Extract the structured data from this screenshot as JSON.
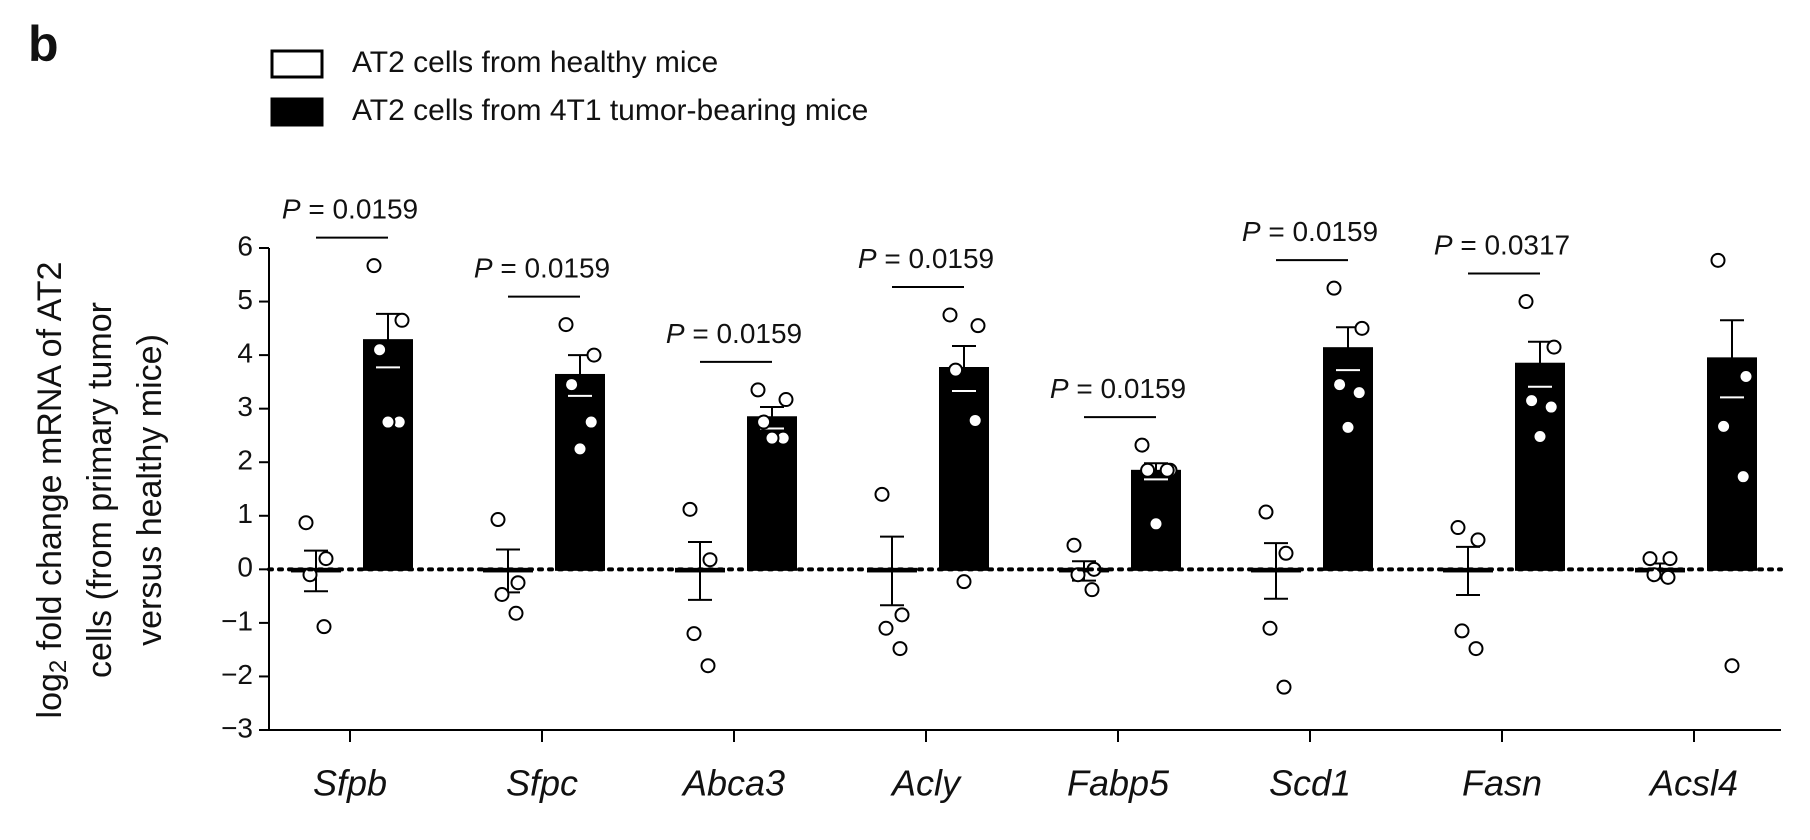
{
  "chart_data": {
    "type": "bar",
    "panel_label": "b",
    "y_label_lines": [
      "log2 fold change mRNA of AT2",
      "cells (from primary tumor",
      "versus healthy mice)"
    ],
    "categories": [
      "Sfpb",
      "Sfpc",
      "Abca3",
      "Acly",
      "Fabp5",
      "Scd1",
      "Fasn",
      "Acsl4"
    ],
    "series": [
      {
        "name": "AT2 cells from healthy mice",
        "color": "#ffffff",
        "values": [
          -0.03,
          -0.03,
          -0.03,
          -0.03,
          -0.03,
          -0.03,
          -0.03,
          -0.03
        ],
        "errors": [
          0.38,
          0.4,
          0.54,
          0.64,
          0.18,
          0.52,
          0.45,
          0.14
        ],
        "points": [
          [
            0.87,
            0.2,
            -0.1,
            -1.07
          ],
          [
            0.93,
            -0.25,
            -0.47,
            -0.82
          ],
          [
            1.12,
            0.18,
            -1.2,
            -1.8
          ],
          [
            1.4,
            -0.85,
            -1.1,
            -1.48
          ],
          [
            0.45,
            0.0,
            -0.1,
            -0.38
          ],
          [
            1.07,
            0.3,
            -1.1,
            -2.2
          ],
          [
            0.78,
            0.55,
            -1.15,
            -1.48
          ],
          [
            0.2,
            0.2,
            -0.1,
            -0.15
          ]
        ]
      },
      {
        "name": "AT2 cells from 4T1 tumor-bearing mice",
        "color": "#000000",
        "values": [
          4.27,
          3.62,
          2.83,
          3.75,
          1.83,
          4.12,
          3.83,
          3.93
        ],
        "errors": [
          0.5,
          0.38,
          0.2,
          0.42,
          0.15,
          0.4,
          0.42,
          0.72
        ],
        "points": [
          [
            5.67,
            4.65,
            4.1,
            2.75,
            2.75
          ],
          [
            4.57,
            4.0,
            3.45,
            2.75,
            2.25
          ],
          [
            3.35,
            3.17,
            2.75,
            2.45,
            2.45
          ],
          [
            4.75,
            4.55,
            3.72,
            2.78,
            -0.23
          ],
          [
            2.32,
            1.85,
            1.85,
            1.85,
            0.85
          ],
          [
            5.25,
            4.5,
            3.45,
            3.3,
            2.65
          ],
          [
            5.0,
            4.15,
            3.15,
            3.03,
            2.48
          ],
          [
            5.77,
            3.6,
            2.67,
            1.73,
            -1.8
          ]
        ]
      }
    ],
    "p_values": [
      "P = 0.0159",
      "P = 0.0159",
      "P = 0.0159",
      "P = 0.0159",
      "P = 0.0159",
      "P = 0.0159",
      "P = 0.0317",
      null
    ],
    "ylim": [
      -3,
      6
    ],
    "yticks": [
      {
        "value": -3,
        "label": "−3"
      },
      {
        "value": -2,
        "label": "−2"
      },
      {
        "value": -1,
        "label": "−1"
      },
      0,
      1,
      2,
      3,
      4,
      5,
      6
    ],
    "reference_line": 0,
    "legend": "top-left"
  }
}
